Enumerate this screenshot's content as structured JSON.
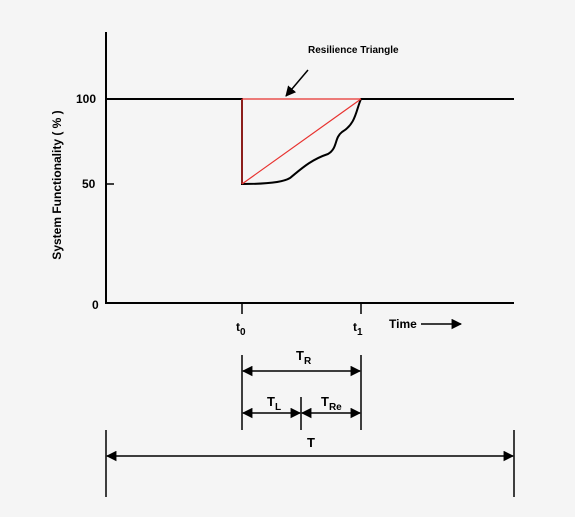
{
  "diagram": {
    "y_axis_label": "System Functionality ( % )",
    "y_ticks": [
      "100",
      "50",
      "0"
    ],
    "annotation": "Resilience Triangle",
    "t0": {
      "base": "t",
      "sub": "0"
    },
    "t1": {
      "base": "t",
      "sub": "1"
    },
    "time_label": "Time",
    "tr": {
      "base": "T",
      "sub": "R"
    },
    "tl": {
      "base": "T",
      "sub": "L"
    },
    "tre": {
      "base": "T",
      "sub": "Re"
    },
    "total": "T",
    "colors": {
      "axes": "#000000",
      "triangle": "#e8322f",
      "background": "#f5f5f5"
    }
  }
}
